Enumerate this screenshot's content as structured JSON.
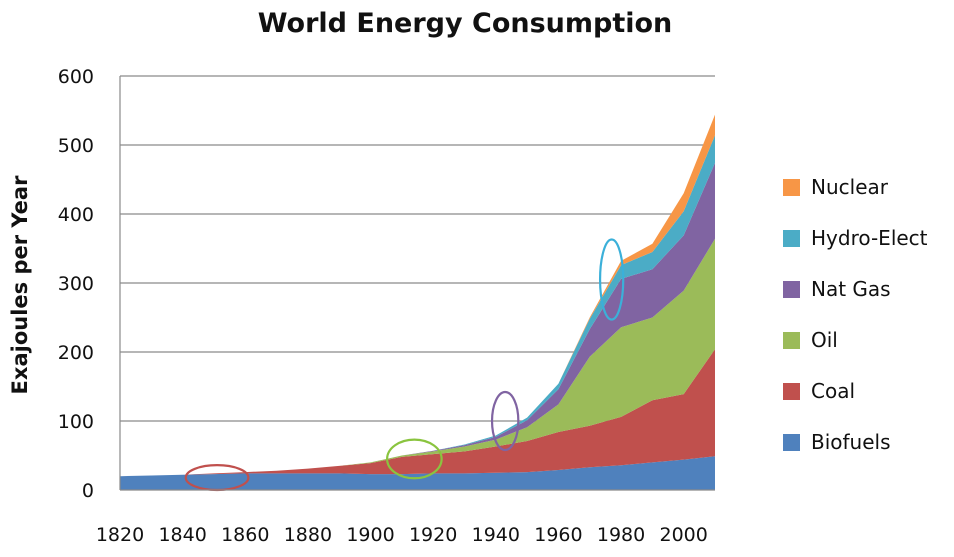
{
  "chart_data": {
    "type": "area",
    "stacked": true,
    "title": "World Energy Consumption",
    "ylabel": "Exajoules per Year",
    "xlabel": "",
    "xlim": [
      1820,
      2010
    ],
    "ylim": [
      0,
      600
    ],
    "grid": true,
    "legend_position": "right",
    "x_ticks": [
      "1820",
      "1840",
      "1860",
      "1880",
      "1900",
      "1920",
      "1940",
      "1960",
      "1980",
      "2000"
    ],
    "y_ticks": [
      "0",
      "100",
      "200",
      "300",
      "400",
      "500",
      "600"
    ],
    "x": [
      1820,
      1830,
      1840,
      1850,
      1860,
      1870,
      1880,
      1890,
      1900,
      1910,
      1920,
      1930,
      1940,
      1950,
      1960,
      1970,
      1980,
      1990,
      2000,
      2010
    ],
    "series": [
      {
        "name": "Biofuels",
        "color": "#4f81bd",
        "values": [
          20,
          21,
          22,
          23,
          24,
          24,
          24,
          24,
          23,
          23,
          24,
          24,
          25,
          26,
          29,
          33,
          36,
          40,
          44,
          49
        ]
      },
      {
        "name": "Coal",
        "color": "#c0504d",
        "values": [
          0,
          0,
          0,
          1,
          2,
          4,
          7,
          11,
          16,
          25,
          28,
          32,
          38,
          45,
          55,
          60,
          70,
          90,
          95,
          155
        ]
      },
      {
        "name": "Oil",
        "color": "#9bbb59",
        "values": [
          0,
          0,
          0,
          0,
          0,
          0,
          0,
          0,
          1,
          2,
          4,
          7,
          10,
          20,
          40,
          100,
          130,
          120,
          150,
          160
        ]
      },
      {
        "name": "Nat Gas",
        "color": "#8064a2",
        "values": [
          0,
          0,
          0,
          0,
          0,
          0,
          0,
          0,
          0,
          0,
          1,
          2,
          4,
          10,
          22,
          40,
          70,
          70,
          80,
          110
        ]
      },
      {
        "name": "Hydro-Elect",
        "color": "#4bacc6",
        "values": [
          0,
          0,
          0,
          0,
          0,
          0,
          0,
          0,
          0,
          0,
          0,
          1,
          2,
          4,
          8,
          15,
          20,
          25,
          35,
          40
        ]
      },
      {
        "name": "Nuclear",
        "color": "#f79646",
        "values": [
          0,
          0,
          0,
          0,
          0,
          0,
          0,
          0,
          0,
          0,
          0,
          0,
          0,
          0,
          0,
          2,
          6,
          12,
          26,
          30
        ]
      }
    ],
    "annotations": [
      {
        "shape": "ellipse",
        "color": "#c0504d",
        "cx": 1851,
        "cy": 18,
        "rx_years": 10,
        "ry_value": 18
      },
      {
        "shape": "ellipse",
        "color": "#8ac43f",
        "cx": 1914,
        "cy": 45,
        "rx_years": 8.7,
        "ry_value": 28
      },
      {
        "shape": "ellipse",
        "color": "#8064a2",
        "cx": 1943,
        "cy": 100,
        "rx_years": 4.2,
        "ry_value": 42
      },
      {
        "shape": "ellipse",
        "color": "#3bb0d9",
        "cx": 1977,
        "cy": 305,
        "rx_years": 3.7,
        "ry_value": 58
      }
    ]
  }
}
